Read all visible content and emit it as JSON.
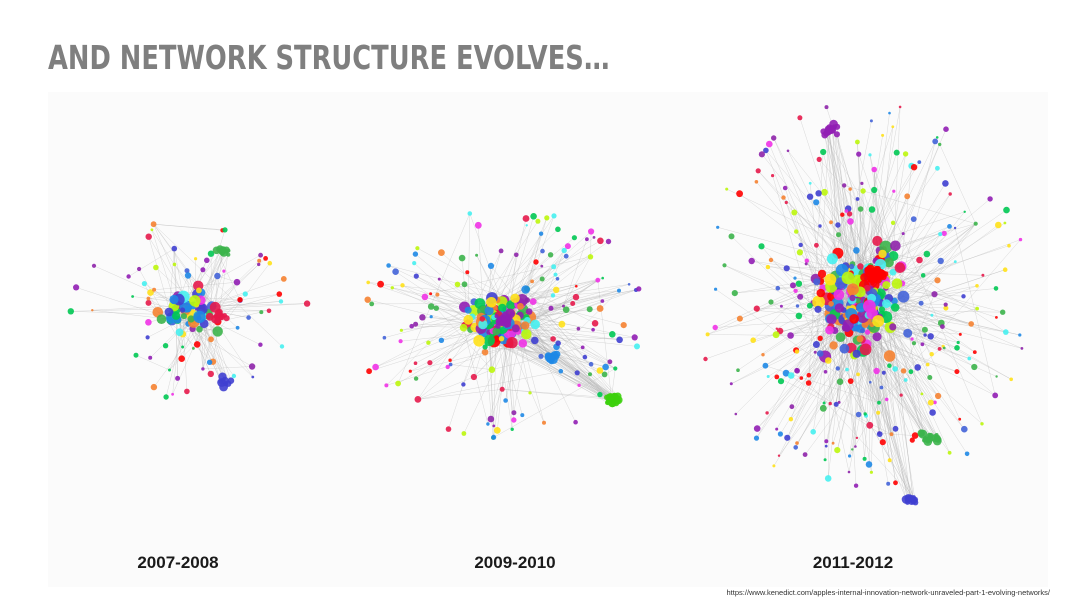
{
  "slide": {
    "title": "AND NETWORK STRUCTURE EVOLVES…",
    "source_url": "https://www.kenedict.com/apples-internal-innovation-network-unraveled-part-1-evolving-networks/"
  },
  "panels": [
    {
      "label": "2007-2008"
    },
    {
      "label": "2009-2010"
    },
    {
      "label": "2011-2012"
    }
  ],
  "colors": {
    "title": "#7f7f7f",
    "edge": "#b0b0b0",
    "palette": [
      "#e6194b",
      "#3cb44b",
      "#ffe119",
      "#4363d8",
      "#f58231",
      "#911eb4",
      "#46f0f0",
      "#f032e6",
      "#bcf60c",
      "#3f3fd0",
      "#ff0000",
      "#00c853",
      "#8e24aa",
      "#1e88e5"
    ]
  }
}
